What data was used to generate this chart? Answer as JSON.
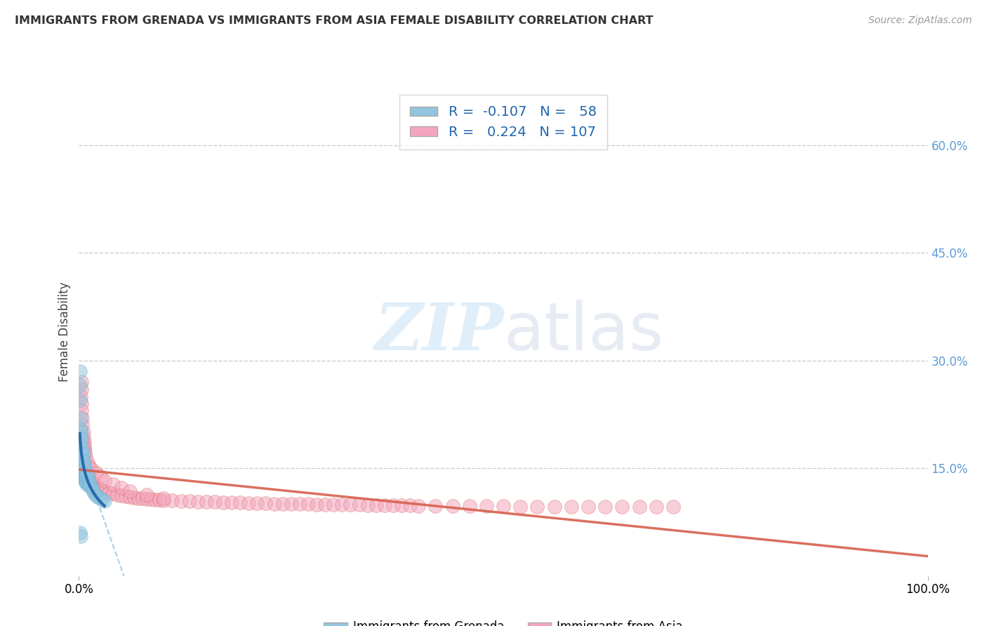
{
  "title": "IMMIGRANTS FROM GRENADA VS IMMIGRANTS FROM ASIA FEMALE DISABILITY CORRELATION CHART",
  "source": "Source: ZipAtlas.com",
  "ylabel": "Female Disability",
  "legend_1_label": "Immigrants from Grenada",
  "legend_2_label": "Immigrants from Asia",
  "R1": -0.107,
  "N1": 58,
  "R2": 0.224,
  "N2": 107,
  "color_grenada": "#92c5de",
  "color_asia": "#f4a6be",
  "color_trend_grenada_solid": "#2166ac",
  "color_trend_grenada_dashed": "#92c5de",
  "color_trend_asia": "#d6604d",
  "xlim": [
    0.0,
    1.0
  ],
  "ylim": [
    0.0,
    0.68
  ],
  "yticks": [
    0.15,
    0.3,
    0.45,
    0.6
  ],
  "ytick_labels": [
    "15.0%",
    "30.0%",
    "45.0%",
    "60.0%"
  ],
  "xtick_labels": [
    "0.0%",
    "100.0%"
  ],
  "background_color": "#ffffff",
  "watermark_zip": "ZIP",
  "watermark_atlas": "atlas",
  "grenada_x": [
    0.001,
    0.001,
    0.001,
    0.002,
    0.002,
    0.002,
    0.002,
    0.002,
    0.002,
    0.003,
    0.003,
    0.003,
    0.003,
    0.003,
    0.003,
    0.004,
    0.004,
    0.004,
    0.004,
    0.004,
    0.005,
    0.005,
    0.005,
    0.005,
    0.005,
    0.006,
    0.006,
    0.006,
    0.006,
    0.007,
    0.007,
    0.007,
    0.007,
    0.008,
    0.008,
    0.008,
    0.009,
    0.009,
    0.009,
    0.01,
    0.01,
    0.011,
    0.011,
    0.012,
    0.012,
    0.013,
    0.014,
    0.015,
    0.016,
    0.017,
    0.018,
    0.02,
    0.022,
    0.025,
    0.028,
    0.03,
    0.001,
    0.002
  ],
  "grenada_y": [
    0.285,
    0.265,
    0.245,
    0.22,
    0.205,
    0.195,
    0.185,
    0.175,
    0.168,
    0.2,
    0.19,
    0.175,
    0.165,
    0.158,
    0.152,
    0.178,
    0.168,
    0.16,
    0.15,
    0.145,
    0.17,
    0.16,
    0.152,
    0.145,
    0.138,
    0.155,
    0.148,
    0.142,
    0.136,
    0.15,
    0.143,
    0.138,
    0.132,
    0.145,
    0.138,
    0.132,
    0.14,
    0.133,
    0.128,
    0.138,
    0.13,
    0.135,
    0.128,
    0.132,
    0.126,
    0.128,
    0.125,
    0.122,
    0.12,
    0.118,
    0.115,
    0.112,
    0.11,
    0.108,
    0.106,
    0.104,
    0.06,
    0.055
  ],
  "asia_x": [
    0.002,
    0.003,
    0.004,
    0.005,
    0.006,
    0.007,
    0.008,
    0.009,
    0.01,
    0.011,
    0.012,
    0.013,
    0.014,
    0.015,
    0.016,
    0.018,
    0.02,
    0.022,
    0.025,
    0.028,
    0.03,
    0.035,
    0.04,
    0.045,
    0.05,
    0.055,
    0.06,
    0.065,
    0.07,
    0.075,
    0.08,
    0.085,
    0.09,
    0.095,
    0.1,
    0.11,
    0.12,
    0.13,
    0.14,
    0.15,
    0.16,
    0.17,
    0.18,
    0.19,
    0.2,
    0.21,
    0.22,
    0.23,
    0.24,
    0.25,
    0.26,
    0.27,
    0.28,
    0.29,
    0.3,
    0.31,
    0.32,
    0.33,
    0.34,
    0.35,
    0.36,
    0.37,
    0.38,
    0.39,
    0.4,
    0.42,
    0.44,
    0.46,
    0.48,
    0.5,
    0.52,
    0.54,
    0.56,
    0.58,
    0.6,
    0.62,
    0.64,
    0.66,
    0.68,
    0.7,
    0.004,
    0.005,
    0.006,
    0.007,
    0.008,
    0.01,
    0.012,
    0.015,
    0.02,
    0.025,
    0.03,
    0.04,
    0.05,
    0.06,
    0.08,
    0.1,
    0.003,
    0.003,
    0.002,
    0.003,
    0.003,
    0.004,
    0.004,
    0.005,
    0.005,
    0.006,
    0.006
  ],
  "asia_y": [
    0.175,
    0.168,
    0.162,
    0.158,
    0.153,
    0.148,
    0.145,
    0.142,
    0.14,
    0.138,
    0.136,
    0.134,
    0.132,
    0.13,
    0.129,
    0.127,
    0.125,
    0.123,
    0.121,
    0.119,
    0.118,
    0.116,
    0.115,
    0.113,
    0.112,
    0.111,
    0.11,
    0.109,
    0.108,
    0.108,
    0.107,
    0.107,
    0.106,
    0.106,
    0.105,
    0.105,
    0.104,
    0.104,
    0.103,
    0.103,
    0.103,
    0.102,
    0.102,
    0.102,
    0.101,
    0.101,
    0.101,
    0.1,
    0.1,
    0.1,
    0.1,
    0.1,
    0.099,
    0.099,
    0.099,
    0.099,
    0.099,
    0.099,
    0.098,
    0.098,
    0.098,
    0.098,
    0.098,
    0.098,
    0.097,
    0.097,
    0.097,
    0.097,
    0.097,
    0.097,
    0.096,
    0.096,
    0.096,
    0.096,
    0.096,
    0.096,
    0.096,
    0.096,
    0.096,
    0.096,
    0.19,
    0.185,
    0.178,
    0.172,
    0.165,
    0.158,
    0.152,
    0.148,
    0.143,
    0.138,
    0.133,
    0.128,
    0.123,
    0.118,
    0.113,
    0.108,
    0.27,
    0.26,
    0.25,
    0.24,
    0.23,
    0.22,
    0.21,
    0.2,
    0.192,
    0.185,
    0.178
  ]
}
